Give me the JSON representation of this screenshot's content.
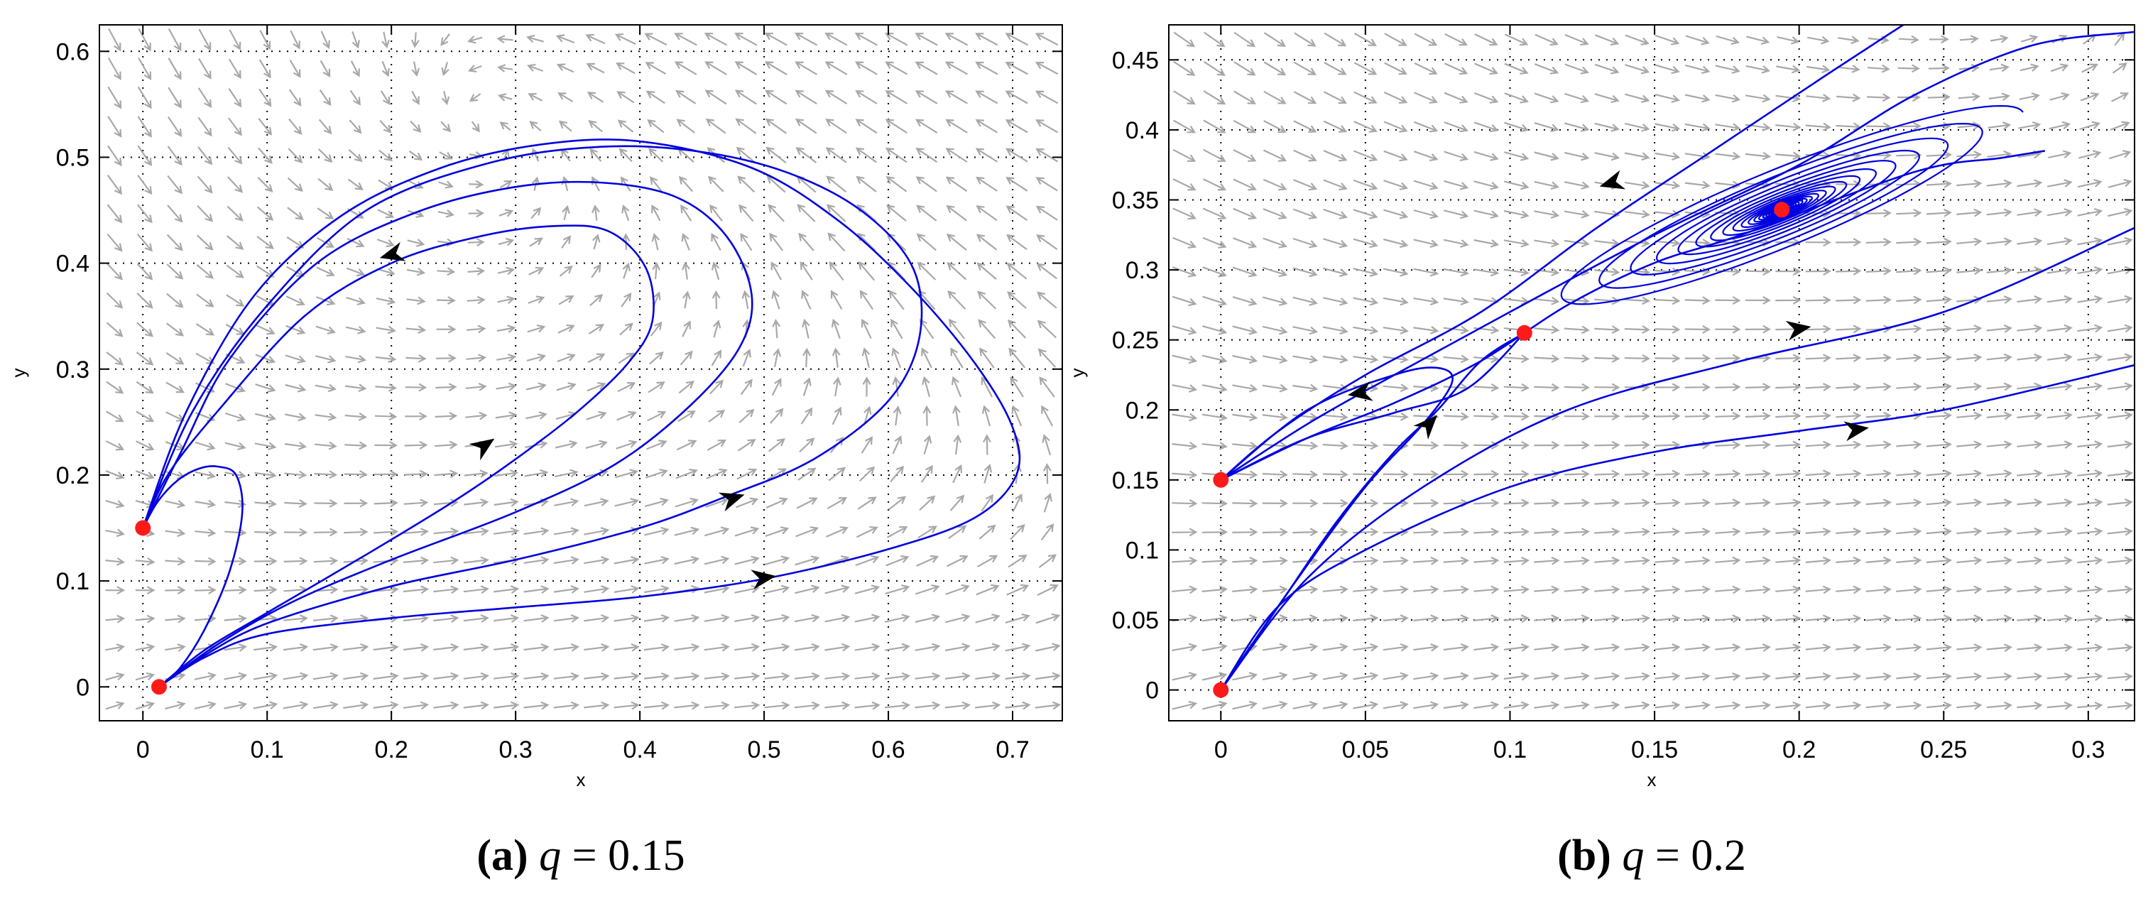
{
  "chart_data": [
    {
      "type": "line",
      "title": "",
      "xlabel": "x",
      "ylabel": "y",
      "xlim": [
        -0.035,
        0.74
      ],
      "ylim": [
        -0.032,
        0.625
      ],
      "xticks": [
        "0",
        "0.1",
        "0.2",
        "0.3",
        "0.4",
        "0.5",
        "0.6",
        "0.7"
      ],
      "yticks": [
        "0",
        "0.1",
        "0.2",
        "0.3",
        "0.4",
        "0.5",
        "0.6"
      ],
      "grid": true,
      "caption": {
        "letter": "(a)",
        "param": "q",
        "value": "= 0.15"
      },
      "field": {
        "a": 2.2,
        "c": 1.5,
        "q": 0.15
      },
      "colors": {
        "trajectory": "#0000e0",
        "equilibrium": "#ff1a1a",
        "field": "#a8a8a8",
        "arrow": "#000000"
      },
      "equilibria": [
        {
          "x": 0,
          "y": 0.15
        },
        {
          "x": 0.013,
          "y": 0
        }
      ],
      "series": [
        {
          "points": [
            [
              0.013,
              0
            ],
            [
              0.03,
              0.018
            ],
            [
              0.05,
              0.055
            ],
            [
              0.07,
              0.11
            ],
            [
              0.08,
              0.165
            ],
            [
              0.075,
              0.2
            ],
            [
              0.06,
              0.208
            ],
            [
              0.045,
              0.206
            ],
            [
              0.028,
              0.195
            ],
            [
              0.012,
              0.175
            ],
            [
              0,
              0.15
            ]
          ]
        },
        {
          "points": [
            [
              0.013,
              0
            ],
            [
              0.05,
              0.035
            ],
            [
              0.1,
              0.07
            ],
            [
              0.18,
              0.125
            ],
            [
              0.25,
              0.175
            ],
            [
              0.3,
              0.215
            ],
            [
              0.35,
              0.26
            ],
            [
              0.39,
              0.305
            ],
            [
              0.41,
              0.345
            ],
            [
              0.405,
              0.395
            ],
            [
              0.375,
              0.43
            ],
            [
              0.33,
              0.435
            ],
            [
              0.27,
              0.425
            ],
            [
              0.2,
              0.4
            ],
            [
              0.13,
              0.35
            ],
            [
              0.06,
              0.26
            ],
            [
              0.02,
              0.2
            ],
            [
              0,
              0.15
            ]
          ]
        },
        {
          "points": [
            [
              0.013,
              0
            ],
            [
              0.06,
              0.04
            ],
            [
              0.12,
              0.08
            ],
            [
              0.2,
              0.12
            ],
            [
              0.3,
              0.165
            ],
            [
              0.38,
              0.21
            ],
            [
              0.44,
              0.265
            ],
            [
              0.48,
              0.32
            ],
            [
              0.49,
              0.37
            ],
            [
              0.47,
              0.425
            ],
            [
              0.43,
              0.462
            ],
            [
              0.37,
              0.476
            ],
            [
              0.3,
              0.472
            ],
            [
              0.22,
              0.448
            ],
            [
              0.14,
              0.4
            ],
            [
              0.07,
              0.31
            ],
            [
              0.03,
              0.22
            ],
            [
              0,
              0.15
            ]
          ]
        },
        {
          "points": [
            [
              0.013,
              0
            ],
            [
              0.05,
              0.03
            ],
            [
              0.1,
              0.06
            ],
            [
              0.2,
              0.095
            ],
            [
              0.3,
              0.12
            ],
            [
              0.4,
              0.15
            ],
            [
              0.47,
              0.18
            ],
            [
              0.54,
              0.215
            ],
            [
              0.6,
              0.27
            ],
            [
              0.625,
              0.33
            ],
            [
              0.62,
              0.395
            ],
            [
              0.58,
              0.448
            ],
            [
              0.52,
              0.485
            ],
            [
              0.45,
              0.505
            ],
            [
              0.37,
              0.51
            ],
            [
              0.28,
              0.495
            ],
            [
              0.18,
              0.45
            ],
            [
              0.1,
              0.36
            ],
            [
              0.04,
              0.26
            ],
            [
              0,
              0.15
            ]
          ]
        },
        {
          "points": [
            [
              0.013,
              0
            ],
            [
              0.05,
              0.028
            ],
            [
              0.1,
              0.05
            ],
            [
              0.2,
              0.065
            ],
            [
              0.3,
              0.075
            ],
            [
              0.4,
              0.085
            ],
            [
              0.5,
              0.102
            ],
            [
              0.6,
              0.13
            ],
            [
              0.67,
              0.16
            ],
            [
              0.703,
              0.2
            ],
            [
              0.7,
              0.245
            ],
            [
              0.67,
              0.305
            ],
            [
              0.62,
              0.375
            ],
            [
              0.56,
              0.44
            ],
            [
              0.49,
              0.49
            ],
            [
              0.4,
              0.515
            ],
            [
              0.32,
              0.512
            ],
            [
              0.24,
              0.49
            ],
            [
              0.16,
              0.445
            ],
            [
              0.09,
              0.37
            ],
            [
              0.035,
              0.26
            ],
            [
              0,
              0.15
            ]
          ]
        }
      ],
      "arrows": [
        {
          "x": 0.2,
          "y": 0.408,
          "dx": -1,
          "dy": -0.32
        },
        {
          "x": 0.275,
          "y": 0.228,
          "dx": 1,
          "dy": 0.8
        },
        {
          "x": 0.475,
          "y": 0.178,
          "dx": 1,
          "dy": 0.38
        },
        {
          "x": 0.5,
          "y": 0.103,
          "dx": 1,
          "dy": 0.18
        }
      ]
    },
    {
      "type": "line",
      "title": "",
      "xlabel": "x",
      "ylabel": "y",
      "xlim": [
        -0.018,
        0.316
      ],
      "ylim": [
        -0.022,
        0.475
      ],
      "xticks": [
        "0",
        "0.05",
        "0.1",
        "0.15",
        "0.2",
        "0.25",
        "0.3"
      ],
      "yticks": [
        "0",
        "0.05",
        "0.1",
        "0.15",
        "0.2",
        "0.25",
        "0.3",
        "0.35",
        "0.4",
        "0.45"
      ],
      "grid": true,
      "caption": {
        "letter": "(b)",
        "param": "q",
        "value": "= 0.2"
      },
      "field": {
        "a": 2.2,
        "c": 1.5,
        "q": 0.2
      },
      "colors": {
        "trajectory": "#0000e0",
        "equilibrium": "#ff1a1a",
        "field": "#a8a8a8",
        "arrow": "#000000"
      },
      "equilibria": [
        {
          "x": 0,
          "y": 0.15
        },
        {
          "x": 0,
          "y": 0
        },
        {
          "x": 0.105,
          "y": 0.255
        },
        {
          "x": 0.194,
          "y": 0.343
        }
      ],
      "spiral": {
        "cx": 0.194,
        "cy": 0.343,
        "rx_start": 0.09,
        "ry_start": 0.03,
        "rx_end": 0.003,
        "ry_end": 0.0012,
        "tilt_deg": 22,
        "turns": 18
      },
      "series": [
        {
          "points": [
            [
              0,
              0.15
            ],
            [
              0.03,
              0.19
            ],
            [
              0.06,
              0.225
            ],
            [
              0.1,
              0.27
            ],
            [
              0.15,
              0.325
            ],
            [
              0.2,
              0.375
            ],
            [
              0.24,
              0.425
            ],
            [
              0.28,
              0.46
            ],
            [
              0.316,
              0.47
            ]
          ]
        },
        {
          "points": [
            [
              0,
              0.15
            ],
            [
              0.02,
              0.185
            ],
            [
              0.05,
              0.225
            ],
            [
              0.09,
              0.27
            ],
            [
              0.13,
              0.33
            ],
            [
              0.17,
              0.385
            ],
            [
              0.21,
              0.44
            ],
            [
              0.236,
              0.475
            ]
          ]
        },
        {
          "points": [
            [
              0,
              0.15
            ],
            [
              0.03,
              0.18
            ],
            [
              0.06,
              0.205
            ],
            [
              0.09,
              0.235
            ],
            [
              0.12,
              0.275
            ],
            [
              0.15,
              0.305
            ],
            [
              0.18,
              0.325
            ],
            [
              0.24,
              0.37
            ],
            [
              0.27,
              0.38
            ],
            [
              0.285,
              0.385
            ]
          ]
        },
        {
          "points": [
            [
              0,
              0.15
            ],
            [
              0.03,
              0.18
            ],
            [
              0.06,
              0.198
            ],
            [
              0.085,
              0.215
            ],
            [
              0.105,
              0.255
            ]
          ]
        },
        {
          "points": [
            [
              0,
              0
            ],
            [
              0.02,
              0.06
            ],
            [
              0.04,
              0.12
            ],
            [
              0.06,
              0.17
            ],
            [
              0.075,
              0.2
            ],
            [
              0.09,
              0.235
            ],
            [
              0.105,
              0.255
            ]
          ]
        },
        {
          "points": [
            [
              0,
              0
            ],
            [
              0.025,
              0.075
            ],
            [
              0.05,
              0.145
            ],
            [
              0.07,
              0.19
            ],
            [
              0.08,
              0.22
            ],
            [
              0.075,
              0.23
            ],
            [
              0.06,
              0.225
            ],
            [
              0.03,
              0.2
            ],
            [
              0,
              0.15
            ]
          ]
        },
        {
          "points": [
            [
              0,
              0
            ],
            [
              0.03,
              0.08
            ],
            [
              0.07,
              0.145
            ],
            [
              0.12,
              0.2
            ],
            [
              0.18,
              0.235
            ],
            [
              0.25,
              0.27
            ],
            [
              0.316,
              0.33
            ]
          ]
        },
        {
          "points": [
            [
              0,
              0
            ],
            [
              0.02,
              0.06
            ],
            [
              0.05,
              0.1
            ],
            [
              0.1,
              0.145
            ],
            [
              0.15,
              0.17
            ],
            [
              0.2,
              0.185
            ],
            [
              0.25,
              0.2
            ],
            [
              0.316,
              0.232
            ]
          ]
        }
      ],
      "arrows": [
        {
          "x": 0.135,
          "y": 0.362,
          "dx": -1,
          "dy": -0.6
        },
        {
          "x": 0.048,
          "y": 0.212,
          "dx": -1,
          "dy": -0.35
        },
        {
          "x": 0.072,
          "y": 0.19,
          "dx": 1,
          "dy": 2.2
        },
        {
          "x": 0.2,
          "y": 0.258,
          "dx": 1,
          "dy": 0.35
        },
        {
          "x": 0.22,
          "y": 0.186,
          "dx": 1,
          "dy": 0.3
        }
      ]
    }
  ]
}
